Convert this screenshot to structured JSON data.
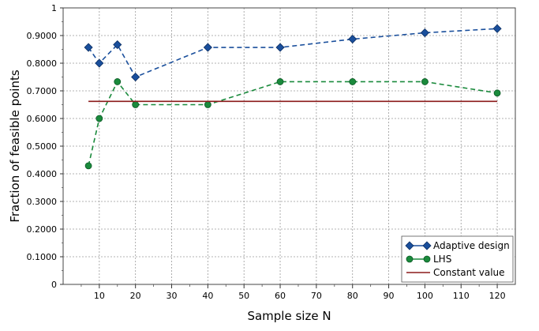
{
  "chart_data": {
    "type": "line",
    "title": "",
    "xlabel": "Sample size N",
    "ylabel": "Fraction of feasible points",
    "xlim": [
      0,
      125
    ],
    "ylim": [
      0,
      1
    ],
    "x_ticks": [
      10,
      20,
      30,
      40,
      50,
      60,
      70,
      80,
      90,
      100,
      110,
      120
    ],
    "y_ticks": [
      0,
      0.1,
      0.2,
      0.3,
      0.4,
      0.5,
      0.6,
      0.7,
      0.8,
      0.9,
      1
    ],
    "y_tick_labels": [
      "0",
      "0.1000",
      "0.2000",
      "0.3000",
      "0.4000",
      "0.5000",
      "0.6000",
      "0.7000",
      "0.8000",
      "0.9000",
      "1"
    ],
    "grid": true,
    "legend_position": "bottom-right",
    "series": [
      {
        "name": "Adaptive design",
        "color": "#1a4f9c",
        "marker": "diamond",
        "line_style": "dashed",
        "x": [
          7,
          10,
          15,
          20,
          40,
          60,
          80,
          100,
          120
        ],
        "y": [
          0.857,
          0.8,
          0.867,
          0.75,
          0.857,
          0.857,
          0.887,
          0.91,
          0.925
        ]
      },
      {
        "name": "LHS",
        "color": "#1a8a3c",
        "marker": "circle",
        "line_style": "dashed",
        "x": [
          7,
          10,
          15,
          20,
          40,
          60,
          80,
          100,
          120
        ],
        "y": [
          0.429,
          0.6,
          0.733,
          0.65,
          0.65,
          0.733,
          0.733,
          0.733,
          0.692
        ]
      },
      {
        "name": "Constant value",
        "color": "#8b1a1a",
        "marker": "none",
        "line_style": "solid",
        "x": [
          7,
          120
        ],
        "y": [
          0.662,
          0.662
        ]
      }
    ]
  }
}
